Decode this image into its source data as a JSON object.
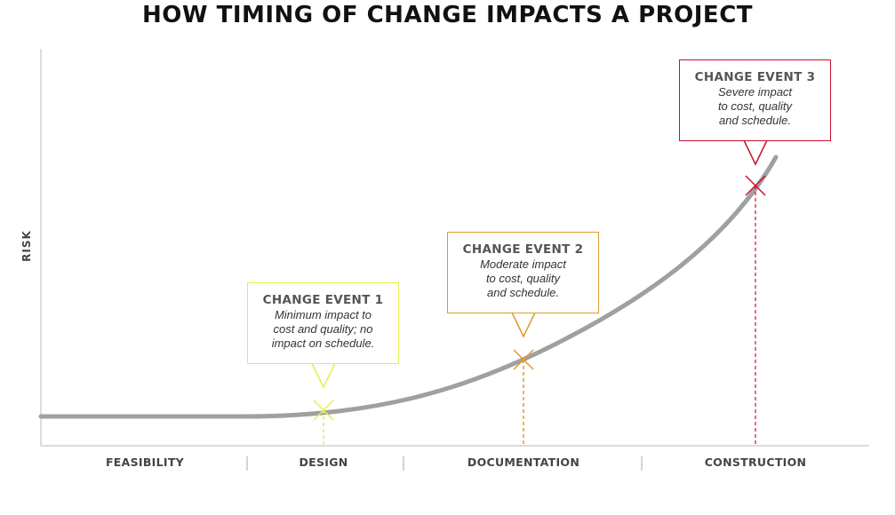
{
  "title": "HOW TIMING OF CHANGE IMPACTS A PROJECT",
  "y_axis_label": "RISK",
  "phases": [
    "FEASIBILITY",
    "DESIGN",
    "DOCUMENTATION",
    "CONSTRUCTION"
  ],
  "events": [
    {
      "title": "CHANGE EVENT 1",
      "lines": [
        "Minimum impact to",
        "cost and quality; no",
        "impact on schedule."
      ],
      "color": "#e6ee4a"
    },
    {
      "title": "CHANGE EVENT 2",
      "lines": [
        "Moderate impact",
        "to cost, quality",
        "and schedule."
      ],
      "color": "#e09a2e"
    },
    {
      "title": "CHANGE EVENT 3",
      "lines": [
        "Severe impact",
        "to cost, quality",
        "and schedule."
      ],
      "color": "#c8102e"
    }
  ],
  "colors": {
    "curve": "#a0a0a0",
    "axis": "#d0d0d0",
    "title": "#111111"
  }
}
